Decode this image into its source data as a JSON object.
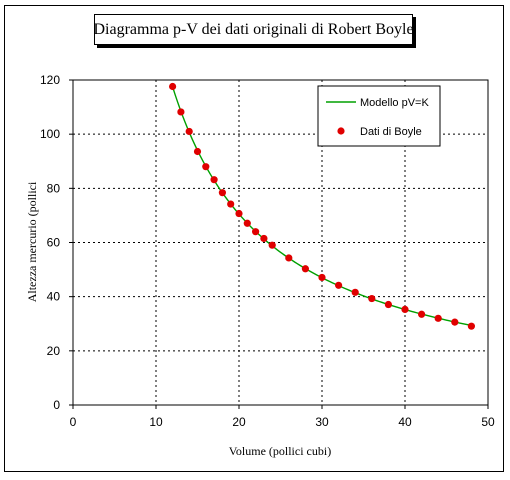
{
  "chart_data": {
    "type": "scatter",
    "title": "Diagramma p-V dei dati originali di Robert Boyle",
    "xlabel": "Volume (pollici cubi)",
    "ylabel": "Altezza mercurio (pollici",
    "xlim": [
      0,
      50
    ],
    "ylim": [
      0,
      120
    ],
    "x_ticks": [
      "0",
      "10",
      "20",
      "30",
      "40",
      "50"
    ],
    "y_ticks": [
      "0",
      "20",
      "40",
      "60",
      "80",
      "100",
      "120"
    ],
    "grid": true,
    "legend_position": "top-right",
    "series": [
      {
        "name": "Modello pV=K",
        "kind": "line",
        "color": "#00a000",
        "K": 1410,
        "x_range": [
          12,
          48
        ]
      },
      {
        "name": "Dati di Boyle",
        "kind": "scatter",
        "color": "#e00000",
        "x": [
          12,
          13,
          14,
          15,
          16,
          17,
          18,
          19,
          20,
          21,
          22,
          23,
          24,
          26,
          28,
          30,
          32,
          34,
          36,
          38,
          40,
          42,
          44,
          46,
          48
        ],
        "y": [
          117.6,
          108.2,
          101.0,
          93.6,
          88.0,
          83.2,
          78.4,
          74.2,
          70.7,
          67.1,
          64.0,
          61.5,
          59.0,
          54.3,
          50.3,
          47.1,
          44.2,
          41.6,
          39.3,
          37.1,
          35.3,
          33.5,
          32.0,
          30.6,
          29.1
        ]
      }
    ]
  }
}
